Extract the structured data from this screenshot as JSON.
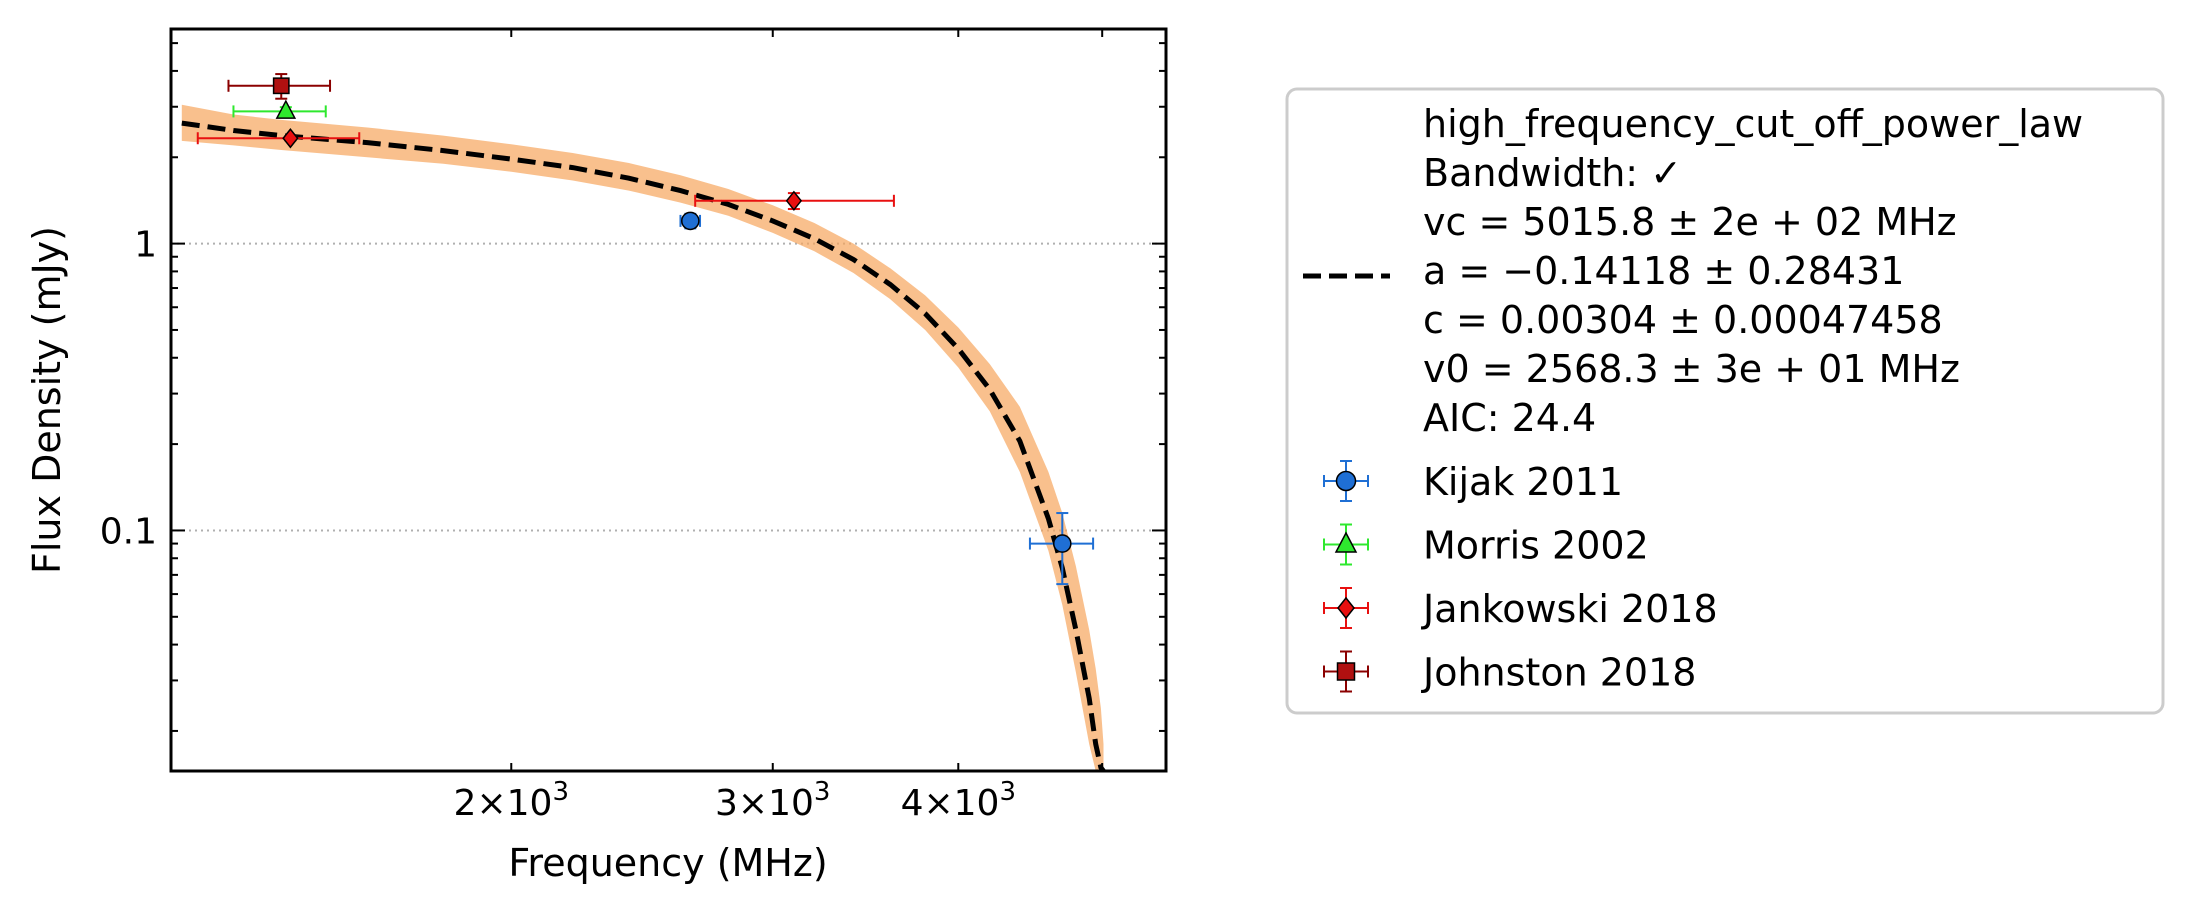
{
  "chart_data": {
    "type": "scatter",
    "title": "",
    "xlabel": "Frequency (MHz)",
    "ylabel": "Flux Density (mJy)",
    "xscale": "log",
    "yscale": "log",
    "xlim": [
      1180,
      5520
    ],
    "ylim": [
      0.0145,
      5.6
    ],
    "grid": "y-major dotted",
    "legend_position": "outside-right",
    "x_tick_labels": [
      {
        "value": 2000,
        "mantissa": "2",
        "exponent": "3"
      },
      {
        "value": 3000,
        "mantissa": "3",
        "exponent": "3"
      },
      {
        "value": 4000,
        "mantissa": "4",
        "exponent": "3"
      }
    ],
    "y_tick_labels": [
      {
        "value": 1,
        "label": "1"
      },
      {
        "value": 0.1,
        "label": "0.1"
      }
    ],
    "fit": {
      "name": "high_frequency_cut_off_power_law",
      "line_color": "#000000",
      "band_color": "#f6a55c",
      "x": [
        1200,
        1300,
        1400,
        1600,
        1800,
        2000,
        2200,
        2400,
        2600,
        2800,
        3000,
        3200,
        3400,
        3600,
        3800,
        4000,
        4200,
        4400,
        4600,
        4700,
        4800,
        4900,
        4950,
        4990,
        5010
      ],
      "y": [
        2.63,
        2.48,
        2.38,
        2.25,
        2.11,
        1.97,
        1.84,
        1.69,
        1.53,
        1.37,
        1.2,
        1.04,
        0.88,
        0.72,
        0.57,
        0.43,
        0.31,
        0.205,
        0.11,
        0.074,
        0.045,
        0.026,
        0.018,
        0.0149,
        0.0145
      ],
      "band_lower": [
        2.28,
        2.2,
        2.12,
        2.0,
        1.9,
        1.78,
        1.66,
        1.53,
        1.39,
        1.25,
        1.09,
        0.94,
        0.79,
        0.64,
        0.5,
        0.37,
        0.26,
        0.16,
        0.085,
        0.055,
        0.032,
        0.018,
        0.0145,
        0.0145,
        0.0145
      ],
      "band_upper": [
        3.05,
        2.82,
        2.7,
        2.54,
        2.38,
        2.22,
        2.07,
        1.91,
        1.73,
        1.55,
        1.36,
        1.18,
        1.0,
        0.82,
        0.66,
        0.51,
        0.38,
        0.27,
        0.16,
        0.115,
        0.075,
        0.045,
        0.033,
        0.024,
        0.018
      ],
      "legend_text": [
        "high_frequency_cut_off_power_law",
        "Bandwidth: ✓",
        "vc = 5015.8 ± 2e + 02 MHz",
        "a = −0.14118 ± 0.28431",
        "c = 0.00304 ± 0.00047458",
        "v0 = 2568.3 ± 3e + 01 MHz",
        "AIC: 24.4"
      ]
    },
    "series": [
      {
        "name": "Kijak 2011",
        "marker": "circle",
        "face_color": "#1f6fd4",
        "error_color": "#1f6fd4",
        "points": [
          {
            "x": 2640,
            "y": 1.2,
            "xerr": [
              40,
              40
            ],
            "yerr": [
              0.07,
              0.07
            ]
          },
          {
            "x": 4700,
            "y": 0.09,
            "xerr": [
              230,
              230
            ],
            "yerr": [
              0.025,
              0.025
            ]
          }
        ]
      },
      {
        "name": "Morris 2002",
        "marker": "triangle",
        "face_color": "#2ee82e",
        "error_color": "#2ee82e",
        "points": [
          {
            "x": 1410,
            "y": 2.89,
            "xerr": [
              110,
              90
            ],
            "yerr": [
              0.1,
              0.1
            ]
          }
        ]
      },
      {
        "name": "Jankowski 2018",
        "marker": "diamond",
        "face_color": "#e81010",
        "error_color": "#e81010",
        "points": [
          {
            "x": 1420,
            "y": 2.33,
            "xerr": [
              190,
              160
            ],
            "yerr": [
              0.04,
              0.04
            ]
          },
          {
            "x": 3100,
            "y": 1.41,
            "xerr": [
              440,
              520
            ],
            "yerr": [
              0.09,
              0.09
            ]
          }
        ]
      },
      {
        "name": "Johnston 2018",
        "marker": "square",
        "face_color": "#b01010",
        "error_color": "#8b0000",
        "points": [
          {
            "x": 1400,
            "y": 3.55,
            "xerr": [
              110,
              110
            ],
            "yerr": [
              0.35,
              0.35
            ]
          }
        ]
      }
    ]
  }
}
